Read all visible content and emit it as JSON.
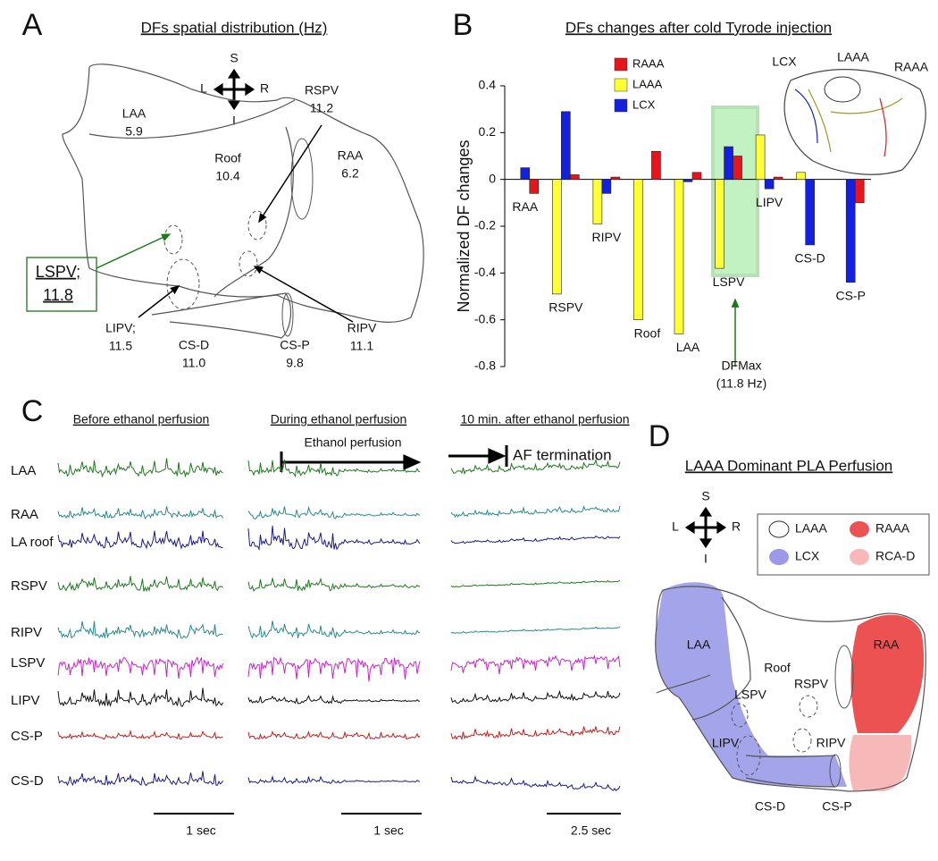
{
  "panel_a": {
    "letter": "A",
    "title": "DFs spatial distribution (Hz)",
    "compass": {
      "s": "S",
      "l": "L",
      "r": "R",
      "i": "I"
    },
    "regions": [
      {
        "label": "LAA",
        "value": "5.9"
      },
      {
        "label": "Roof",
        "value": "10.4"
      },
      {
        "label": "RAA",
        "value": "6.2"
      },
      {
        "label": "RSPV",
        "value": "11.2"
      },
      {
        "label": "LSPV;",
        "value": "11.8"
      },
      {
        "label": "LIPV;",
        "value": "11.5"
      },
      {
        "label": "CS-D",
        "value": "11.0"
      },
      {
        "label": "CS-P",
        "value": "9.8"
      },
      {
        "label": "RIPV",
        "value": "11.1"
      }
    ]
  },
  "chart_data": {
    "type": "bar",
    "panel_letter": "B",
    "title": "DFs changes after cold Tyrode injection",
    "y_label": "Normalized DF changes",
    "categories": [
      "RAA",
      "RSPV",
      "RIPV",
      "Roof",
      "LAA",
      "LSPV",
      "LIPV",
      "CS-D",
      "CS-P"
    ],
    "series": [
      {
        "name": "RAAA",
        "color": "#e8141b",
        "values": [
          -0.06,
          0.02,
          0.01,
          0.12,
          0.03,
          0.1,
          0.01,
          0,
          -0.1
        ]
      },
      {
        "name": "LAAA",
        "color": "#ffff33",
        "values": [
          0,
          -0.49,
          -0.19,
          -0.6,
          -0.66,
          -0.38,
          0.19,
          0.03,
          0
        ]
      },
      {
        "name": "LCX",
        "color": "#1420e0",
        "values": [
          0.05,
          0.29,
          -0.06,
          0,
          -0.01,
          0.14,
          -0.04,
          -0.28,
          -0.44
        ]
      }
    ],
    "ylim": [
      -0.8,
      0.4
    ],
    "yticks": [
      0.4,
      0.2,
      0,
      -0.2,
      -0.4,
      -0.6,
      -0.8
    ],
    "annotation": [
      "DFMax",
      "(11.8 Hz)"
    ],
    "inset_labels": [
      {
        "text": "LCX",
        "color": "#1420e0"
      },
      {
        "text": "LAAA",
        "color": "#111111"
      },
      {
        "text": "RAAA",
        "color": "#e8141b"
      }
    ]
  },
  "panel_c": {
    "letter": "C",
    "columns": [
      "Before ethanol perfusion",
      "During ethanol perfusion",
      "10 min. after ethanol perfusion"
    ],
    "events": [
      "Ethanol perfusion",
      "AF termination"
    ],
    "traces": [
      {
        "label": "LAA",
        "color": "#1f7a1f"
      },
      {
        "label": "RAA",
        "color": "#2a8a8a"
      },
      {
        "label": "LA roof",
        "color": "#1a1a8c"
      },
      {
        "label": "RSPV",
        "color": "#1f7a1f"
      },
      {
        "label": "RIPV",
        "color": "#2a8a8a"
      },
      {
        "label": "LSPV",
        "color": "#cc22cc"
      },
      {
        "label": "LIPV",
        "color": "#111111"
      },
      {
        "label": "CS-P",
        "color": "#cc1a1a"
      },
      {
        "label": "CS-D",
        "color": "#1a1a8c"
      }
    ],
    "scale_bars": [
      "1 sec",
      "1 sec",
      "2.5 sec"
    ]
  },
  "panel_d": {
    "letter": "D",
    "title": "LAAA Dominant PLA Perfusion",
    "compass": {
      "s": "S",
      "l": "L",
      "r": "R",
      "i": "I"
    },
    "legend": [
      {
        "name": "LAAA",
        "color": "#ffffff"
      },
      {
        "name": "RAAA",
        "color": "#ec5252"
      },
      {
        "name": "LCX",
        "color": "#9a9ae8"
      },
      {
        "name": "RCA-D",
        "color": "#f7b8b8"
      }
    ],
    "labels": [
      "LAA",
      "Roof",
      "RSPV",
      "RAA",
      "LSPV",
      "LIPV",
      "RIPV",
      "CS-D",
      "CS-P"
    ]
  }
}
